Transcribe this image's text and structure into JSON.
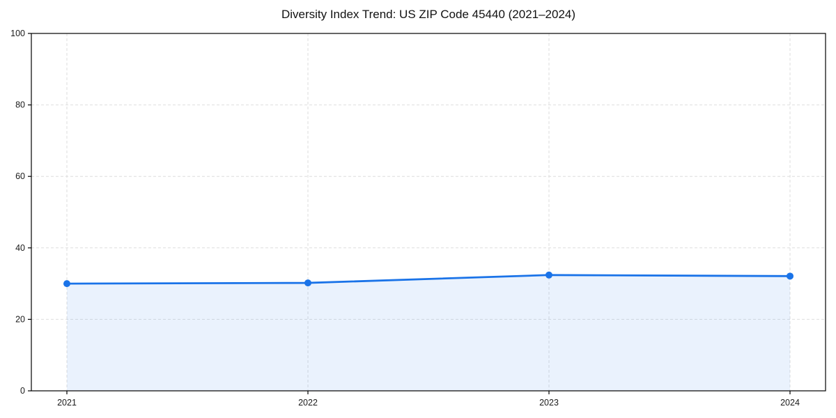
{
  "page": {
    "background": "#ffffff"
  },
  "chart_data": {
    "type": "line",
    "title": "Diversity Index Trend: US ZIP Code 45440 (2021–2024)",
    "categories": [
      "2021",
      "2022",
      "2023",
      "2024"
    ],
    "series": [
      {
        "name": "Diversity Index",
        "values": [
          30.0,
          30.2,
          32.4,
          32.1
        ]
      }
    ],
    "xlabel": "",
    "ylabel": "",
    "ylim": [
      0,
      100
    ],
    "yticks": [
      0,
      20,
      40,
      60,
      80,
      100
    ],
    "grid": "dashed, both axes",
    "legend_position": "none",
    "area_fill": true,
    "marker": "circle",
    "colors": {
      "line": "#1a73e8",
      "marker": "#1a73e8",
      "fill": "#1a73e8",
      "fill_opacity": 0.09,
      "gridline": "#dedede",
      "spine": "#000000",
      "text": "#1a1a1a",
      "title_text": "#111111"
    }
  }
}
